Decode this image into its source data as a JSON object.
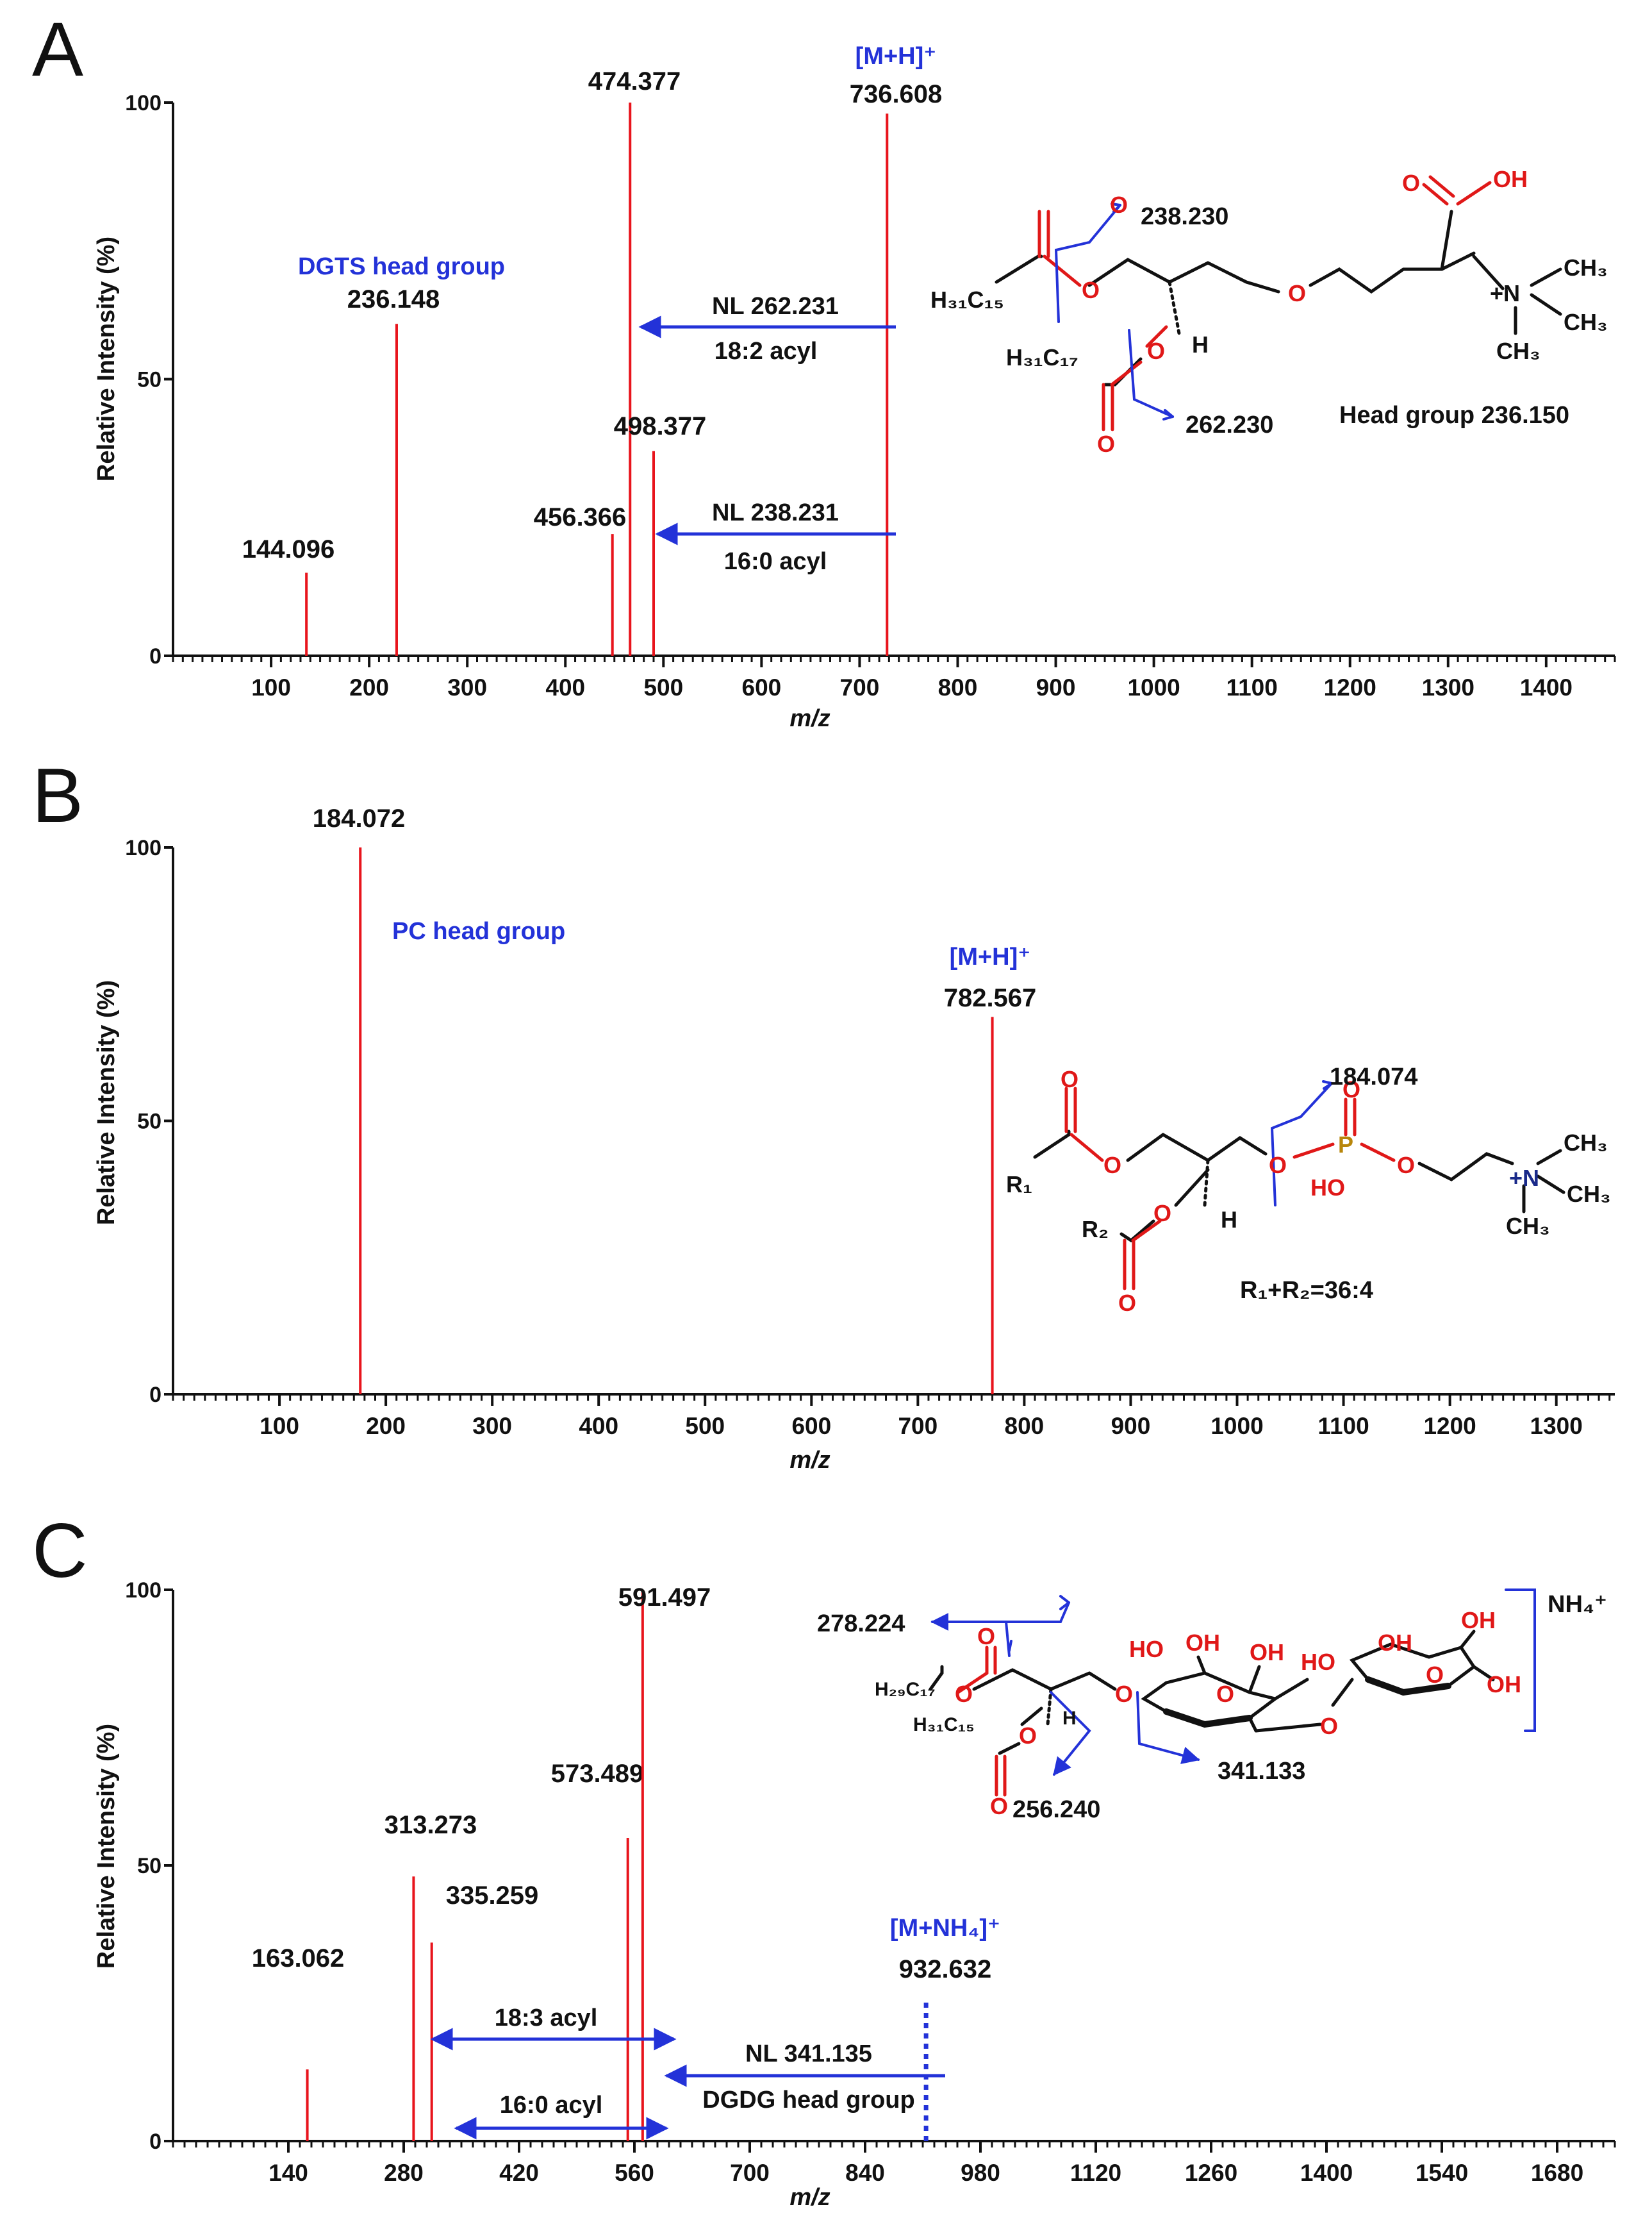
{
  "colors": {
    "peak": "#e8141c",
    "annotation": "#2332d8",
    "text": "#111111",
    "oxygen": "#e01818",
    "phosphorus": "#b8860b"
  },
  "chart_data": [
    {
      "panel": "A",
      "type": "bar",
      "xlabel": "m/z",
      "ylabel": "Relative Intensity (%)",
      "xticks": [
        100,
        200,
        300,
        400,
        500,
        600,
        700,
        800,
        900,
        1000,
        1100,
        1200,
        1300,
        1400
      ],
      "yticks": [
        0,
        50,
        100
      ],
      "peaks": [
        {
          "mz": 144.096,
          "x": 136,
          "intensity": 15,
          "label": "144.096"
        },
        {
          "mz": 236.148,
          "x": 228,
          "intensity": 60,
          "label": "236.148"
        },
        {
          "mz": 456.366,
          "x": 448,
          "intensity": 22,
          "label": "456.366"
        },
        {
          "mz": 474.377,
          "x": 466,
          "intensity": 100,
          "label": "474.377"
        },
        {
          "mz": 498.377,
          "x": 490,
          "intensity": 37,
          "label": "498.377"
        },
        {
          "mz": 736.608,
          "x": 728,
          "intensity": 98,
          "label": "736.608",
          "ion": "[M+H]⁺"
        }
      ],
      "annotations": {
        "head_group": "DGTS head group",
        "nl1": "NL 262.231",
        "nl1_acyl": "18:2 acyl",
        "nl2": "NL 238.231",
        "nl2_acyl": "16:0 acyl"
      },
      "structure": {
        "frag1": "238.230",
        "frag2": "262.230",
        "head": "Head group 236.150",
        "chain1": "H₃₁C₁₅",
        "chain2": "H₃₁C₁₇",
        "oh": "OH",
        "o": "O",
        "h": "H",
        "n": "+N",
        "ch3": "CH₃"
      }
    },
    {
      "panel": "B",
      "type": "bar",
      "xlabel": "m/z",
      "ylabel": "Relative Intensity (%)",
      "xticks": [
        100,
        200,
        300,
        400,
        500,
        600,
        700,
        800,
        900,
        1000,
        1100,
        1200,
        1300
      ],
      "yticks": [
        0,
        50,
        100
      ],
      "peaks": [
        {
          "mz": 184.072,
          "x": 176,
          "intensity": 100,
          "label": "184.072"
        },
        {
          "mz": 782.567,
          "x": 770,
          "intensity": 69,
          "label": "782.567",
          "ion": "[M+H]⁺"
        }
      ],
      "annotations": {
        "head_group": "PC head group"
      },
      "structure": {
        "frag1": "184.074",
        "sum": "R₁+R₂=36:4",
        "r1": "R₁",
        "r2": "R₂",
        "o": "O",
        "p": "P",
        "ho": "HO",
        "h": "H",
        "n": "+N",
        "ch3": "CH₃"
      }
    },
    {
      "panel": "C",
      "type": "bar",
      "xlabel": "m/z",
      "ylabel": "Relative Intensity (%)",
      "xticks": [
        140,
        280,
        420,
        560,
        700,
        840,
        980,
        1120,
        1260,
        1400,
        1540,
        1680
      ],
      "yticks": [
        0,
        50,
        100
      ],
      "peaks": [
        {
          "mz": 163.062,
          "x": 163,
          "intensity": 13,
          "label": "163.062"
        },
        {
          "mz": 313.273,
          "x": 292,
          "intensity": 48,
          "label": "313.273"
        },
        {
          "mz": 335.259,
          "x": 314,
          "intensity": 36,
          "label": "335.259"
        },
        {
          "mz": 573.489,
          "x": 552,
          "intensity": 55,
          "label": "573.489"
        },
        {
          "mz": 591.497,
          "x": 570,
          "intensity": 100,
          "label": "591.497"
        },
        {
          "mz": 932.632,
          "x": 914,
          "intensity": 26,
          "label": "932.632",
          "ion": "[M+NH₄]⁺",
          "dotted": true
        }
      ],
      "annotations": {
        "acyl1": "18:3 acyl",
        "acyl2": "16:0 acyl",
        "nl": "NL 341.135",
        "head_group": "DGDG head group"
      },
      "structure": {
        "frag1": "278.224",
        "frag2": "256.240",
        "frag3": "341.133",
        "adduct": "NH₄⁺",
        "chain1": "H₂₉C₁₇",
        "chain2": "H₃₁C₁₅",
        "oh": "OH",
        "ho": "HO",
        "o": "O",
        "h": "H"
      }
    }
  ]
}
